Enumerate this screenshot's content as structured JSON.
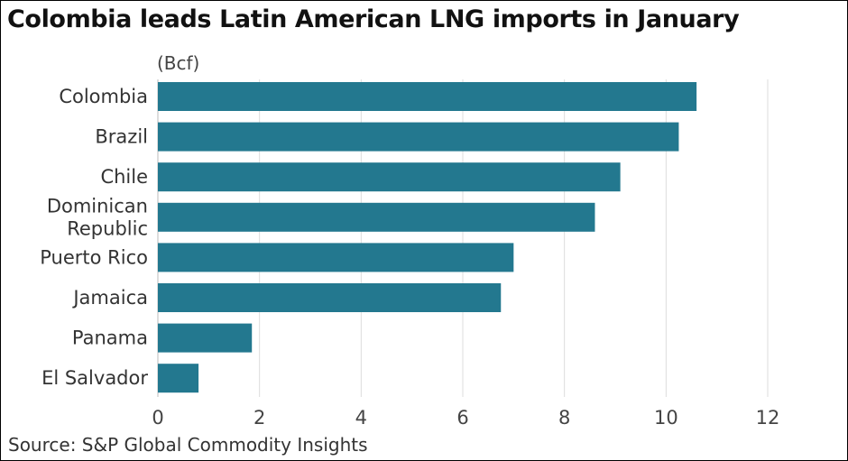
{
  "chart_data": {
    "type": "bar",
    "orientation": "horizontal",
    "title": "Colombia leads Latin American LNG imports in January",
    "unit": "(Bcf)",
    "categories": [
      "Colombia",
      "Brazil",
      "Chile",
      "Dominican Republic",
      "Puerto Rico",
      "Jamaica",
      "Panama",
      "El Salvador"
    ],
    "category_lines": [
      [
        "Colombia"
      ],
      [
        "Brazil"
      ],
      [
        "Chile"
      ],
      [
        "Dominican",
        "Republic"
      ],
      [
        "Puerto Rico"
      ],
      [
        "Jamaica"
      ],
      [
        "Panama"
      ],
      [
        "El Salvador"
      ]
    ],
    "values": [
      10.6,
      10.25,
      9.1,
      8.6,
      7.0,
      6.75,
      1.85,
      0.8
    ],
    "xlim": [
      0,
      12
    ],
    "xticks": [
      0,
      2,
      4,
      6,
      8,
      10,
      12
    ],
    "grid": true,
    "bar_color": "#23788f",
    "grid_color": "#dddddd",
    "source": "Source: S&P Global Commodity Insights"
  }
}
